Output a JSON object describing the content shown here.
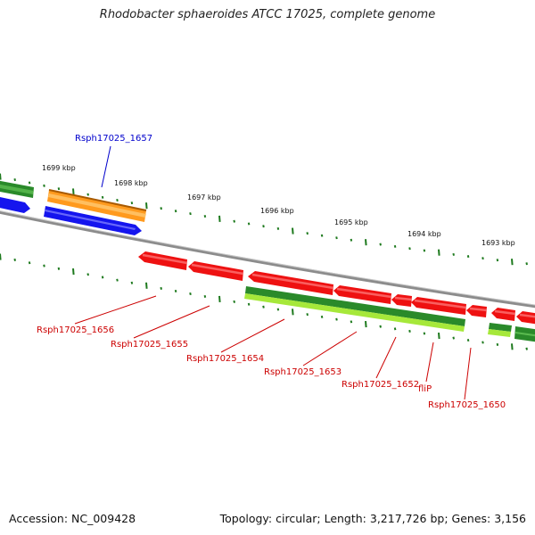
{
  "title": "Rhodobacter sphaeroides ATCC 17025, complete genome",
  "footer": {
    "accession": "Accession: NC_009428",
    "summary": "Topology: circular; Length: 3,217,726 bp; Genes: 3,156"
  },
  "colors": {
    "backbone": "#8c8c8c",
    "tick": "#1e7a1e",
    "gene_red": "#ee1111",
    "gene_green": "#2a8a2a",
    "gene_lightgreen": "#a6e83a",
    "gene_orange": "#ff9a1e",
    "gene_blue": "#1515ee",
    "label_red": "#cc0000",
    "label_blue": "#0000cc"
  },
  "scale_labels": [
    "1699 kbp",
    "1698 kbp",
    "1697 kbp",
    "1696 kbp",
    "1695 kbp",
    "1694 kbp",
    "1693 kbp"
  ],
  "genes": [
    {
      "name": "Rsph17025_1657",
      "color": "blue"
    },
    {
      "name": "Rsph17025_1656",
      "color": "red"
    },
    {
      "name": "Rsph17025_1655",
      "color": "red"
    },
    {
      "name": "Rsph17025_1654",
      "color": "red"
    },
    {
      "name": "Rsph17025_1653",
      "color": "red"
    },
    {
      "name": "Rsph17025_1652",
      "color": "red"
    },
    {
      "name": "fliP",
      "color": "red"
    },
    {
      "name": "Rsph17025_1650",
      "color": "red"
    }
  ]
}
